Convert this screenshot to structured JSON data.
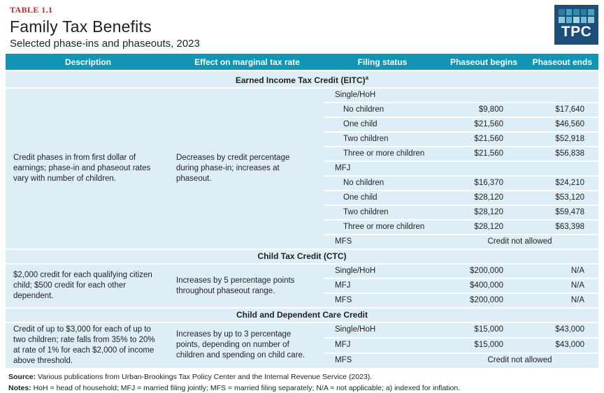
{
  "meta": {
    "table_label": "TABLE 1.1",
    "title": "Family Tax Benefits",
    "subtitle": "Selected phase-ins and phaseouts, 2023"
  },
  "logo": {
    "text": "TPC",
    "background": "#1d4d79",
    "squares": [
      "#2e7ca3",
      "#45a3bd",
      "#2e8cab",
      "#2d7ba0",
      "#45a3bd",
      "#8ec9d8",
      "#5fb3c9",
      "#a5d5e0",
      "#74bccf",
      "#8ec9d8"
    ]
  },
  "colors": {
    "header_teal": "#1295b5",
    "row_blue": "#ddeef7",
    "accent_red": "#cf2027"
  },
  "columns": [
    "Description",
    "Effect on marginal tax rate",
    "Filing status",
    "Phaseout begins",
    "Phaseout ends"
  ],
  "sections": [
    {
      "name": "Earned Income Tax Credit (EITC)",
      "superscript": "a",
      "description": "Credit phases in from first dollar of earnings; phase-in and phaseout rates vary with number of children.",
      "effect": "Decreases by credit percentage during phase-in; increases at phaseout.",
      "rows": [
        {
          "label": "Single/HoH",
          "indent": false,
          "begins": "",
          "ends": ""
        },
        {
          "label": "No children",
          "indent": true,
          "begins": "$9,800",
          "ends": "$17,640"
        },
        {
          "label": "One child",
          "indent": true,
          "begins": "$21,560",
          "ends": "$46,560"
        },
        {
          "label": "Two children",
          "indent": true,
          "begins": "$21,560",
          "ends": "$52,918"
        },
        {
          "label": "Three or more children",
          "indent": true,
          "begins": "$21,560",
          "ends": "$56,838"
        },
        {
          "label": "MFJ",
          "indent": false,
          "begins": "",
          "ends": ""
        },
        {
          "label": "No children",
          "indent": true,
          "begins": "$16,370",
          "ends": "$24,210"
        },
        {
          "label": "One child",
          "indent": true,
          "begins": "$28,120",
          "ends": "$53,120"
        },
        {
          "label": "Two children",
          "indent": true,
          "begins": "$28,120",
          "ends": "$59,478"
        },
        {
          "label": "Three or more children",
          "indent": true,
          "begins": "$28,120",
          "ends": "$63,398"
        },
        {
          "label": "MFS",
          "indent": false,
          "span": "Credit not allowed"
        }
      ]
    },
    {
      "name": "Child Tax Credit (CTC)",
      "superscript": "",
      "description": "$2,000 credit for each qualifying citizen child; $500 credit for each other dependent.",
      "effect": "Increases by 5 percentage points throughout phaseout range.",
      "rows": [
        {
          "label": "Single/HoH",
          "indent": false,
          "begins": "$200,000",
          "ends": "N/A"
        },
        {
          "label": "MFJ",
          "indent": false,
          "begins": "$400,000",
          "ends": "N/A"
        },
        {
          "label": "MFS",
          "indent": false,
          "begins": "$200,000",
          "ends": "N/A"
        }
      ]
    },
    {
      "name": "Child and Dependent Care Credit",
      "superscript": "",
      "description": "Credit of up to $3,000 for each of up to two children; rate falls from 35% to 20% at rate of 1% for each $2,000 of income above threshold.",
      "effect": "Increases by up to 3 percentage points, depending on number of children and spending on child care.",
      "rows": [
        {
          "label": "Single/HoH",
          "indent": false,
          "begins": "$15,000",
          "ends": "$43,000"
        },
        {
          "label": "MFJ",
          "indent": false,
          "begins": "$15,000",
          "ends": "$43,000"
        },
        {
          "label": "MFS",
          "indent": false,
          "span": "Credit not allowed"
        }
      ]
    }
  ],
  "footer": {
    "source_label": "Source:",
    "source_text": "Various publications from Urban-Brookings Tax Policy Center and the Internal Revenue Service (2023).",
    "notes_label": "Notes:",
    "notes_text": "HoH = head of household; MFJ = married filing jointly; MFS = married filing separately; N/A = not applicable; a) indexed for inflation."
  }
}
